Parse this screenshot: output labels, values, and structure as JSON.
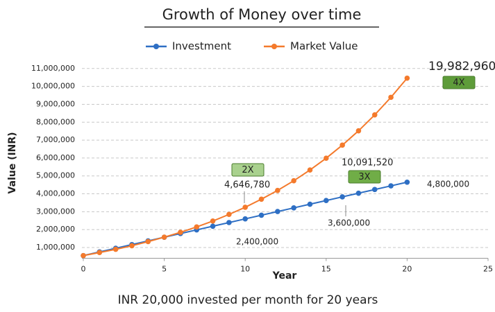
{
  "chart_data": {
    "type": "line",
    "title": "Growth of Money over time",
    "subtitle": "INR 20,000 invested per month for 20 years",
    "xlabel": "Year",
    "ylabel": "Value (INR)",
    "x": [
      0,
      1,
      2,
      3,
      4,
      5,
      6,
      7,
      8,
      9,
      10,
      11,
      12,
      13,
      14,
      15,
      16,
      17,
      18,
      19,
      20
    ],
    "series": [
      {
        "name": "Investment",
        "color": "#2e6fc4",
        "values": [
          550000,
          755000,
          960000,
          1165000,
          1370000,
          1575000,
          1780000,
          1985000,
          2190000,
          2395000,
          2600000,
          2805000,
          3010000,
          3215000,
          3420000,
          3625000,
          3830000,
          4035000,
          4240000,
          4445000,
          4650000
        ]
      },
      {
        "name": "Market Value",
        "color": "#f47a2c",
        "values": [
          550000,
          720000,
          900000,
          1100000,
          1330000,
          1580000,
          1850000,
          2150000,
          2480000,
          2850000,
          3250000,
          3700000,
          4190000,
          4730000,
          5330000,
          5990000,
          6720000,
          7520000,
          8410000,
          9390000,
          10460000
        ]
      }
    ],
    "xlim": [
      0,
      25
    ],
    "xticks": [
      0,
      5,
      10,
      15,
      20,
      25
    ],
    "ylim": [
      400000,
      11000000
    ],
    "yticks": [
      {
        "value": 1000000,
        "label": "1,000,000"
      },
      {
        "value": 2000000,
        "label": "2,000,000"
      },
      {
        "value": 3000000,
        "label": "3,000,000"
      },
      {
        "value": 4000000,
        "label": "4,000,000"
      },
      {
        "value": 5000000,
        "label": "5,000,000"
      },
      {
        "value": 6000000,
        "label": "6,000,000"
      },
      {
        "value": 7000000,
        "label": "7,000,000"
      },
      {
        "value": 8000000,
        "label": "8,000,000"
      },
      {
        "value": 9000000,
        "label": "9,000,000"
      },
      {
        "value": 10000000,
        "label": "10,000,000"
      },
      {
        "value": 11000000,
        "label": "11,000,000"
      }
    ],
    "grid": true,
    "legend": "top",
    "annotations": [
      "4,646,780",
      "10,091,520",
      "19,982,960",
      "2,400,000",
      "3,600,000",
      "4,800,000"
    ],
    "badges": [
      "2X",
      "3X",
      "4X"
    ]
  }
}
